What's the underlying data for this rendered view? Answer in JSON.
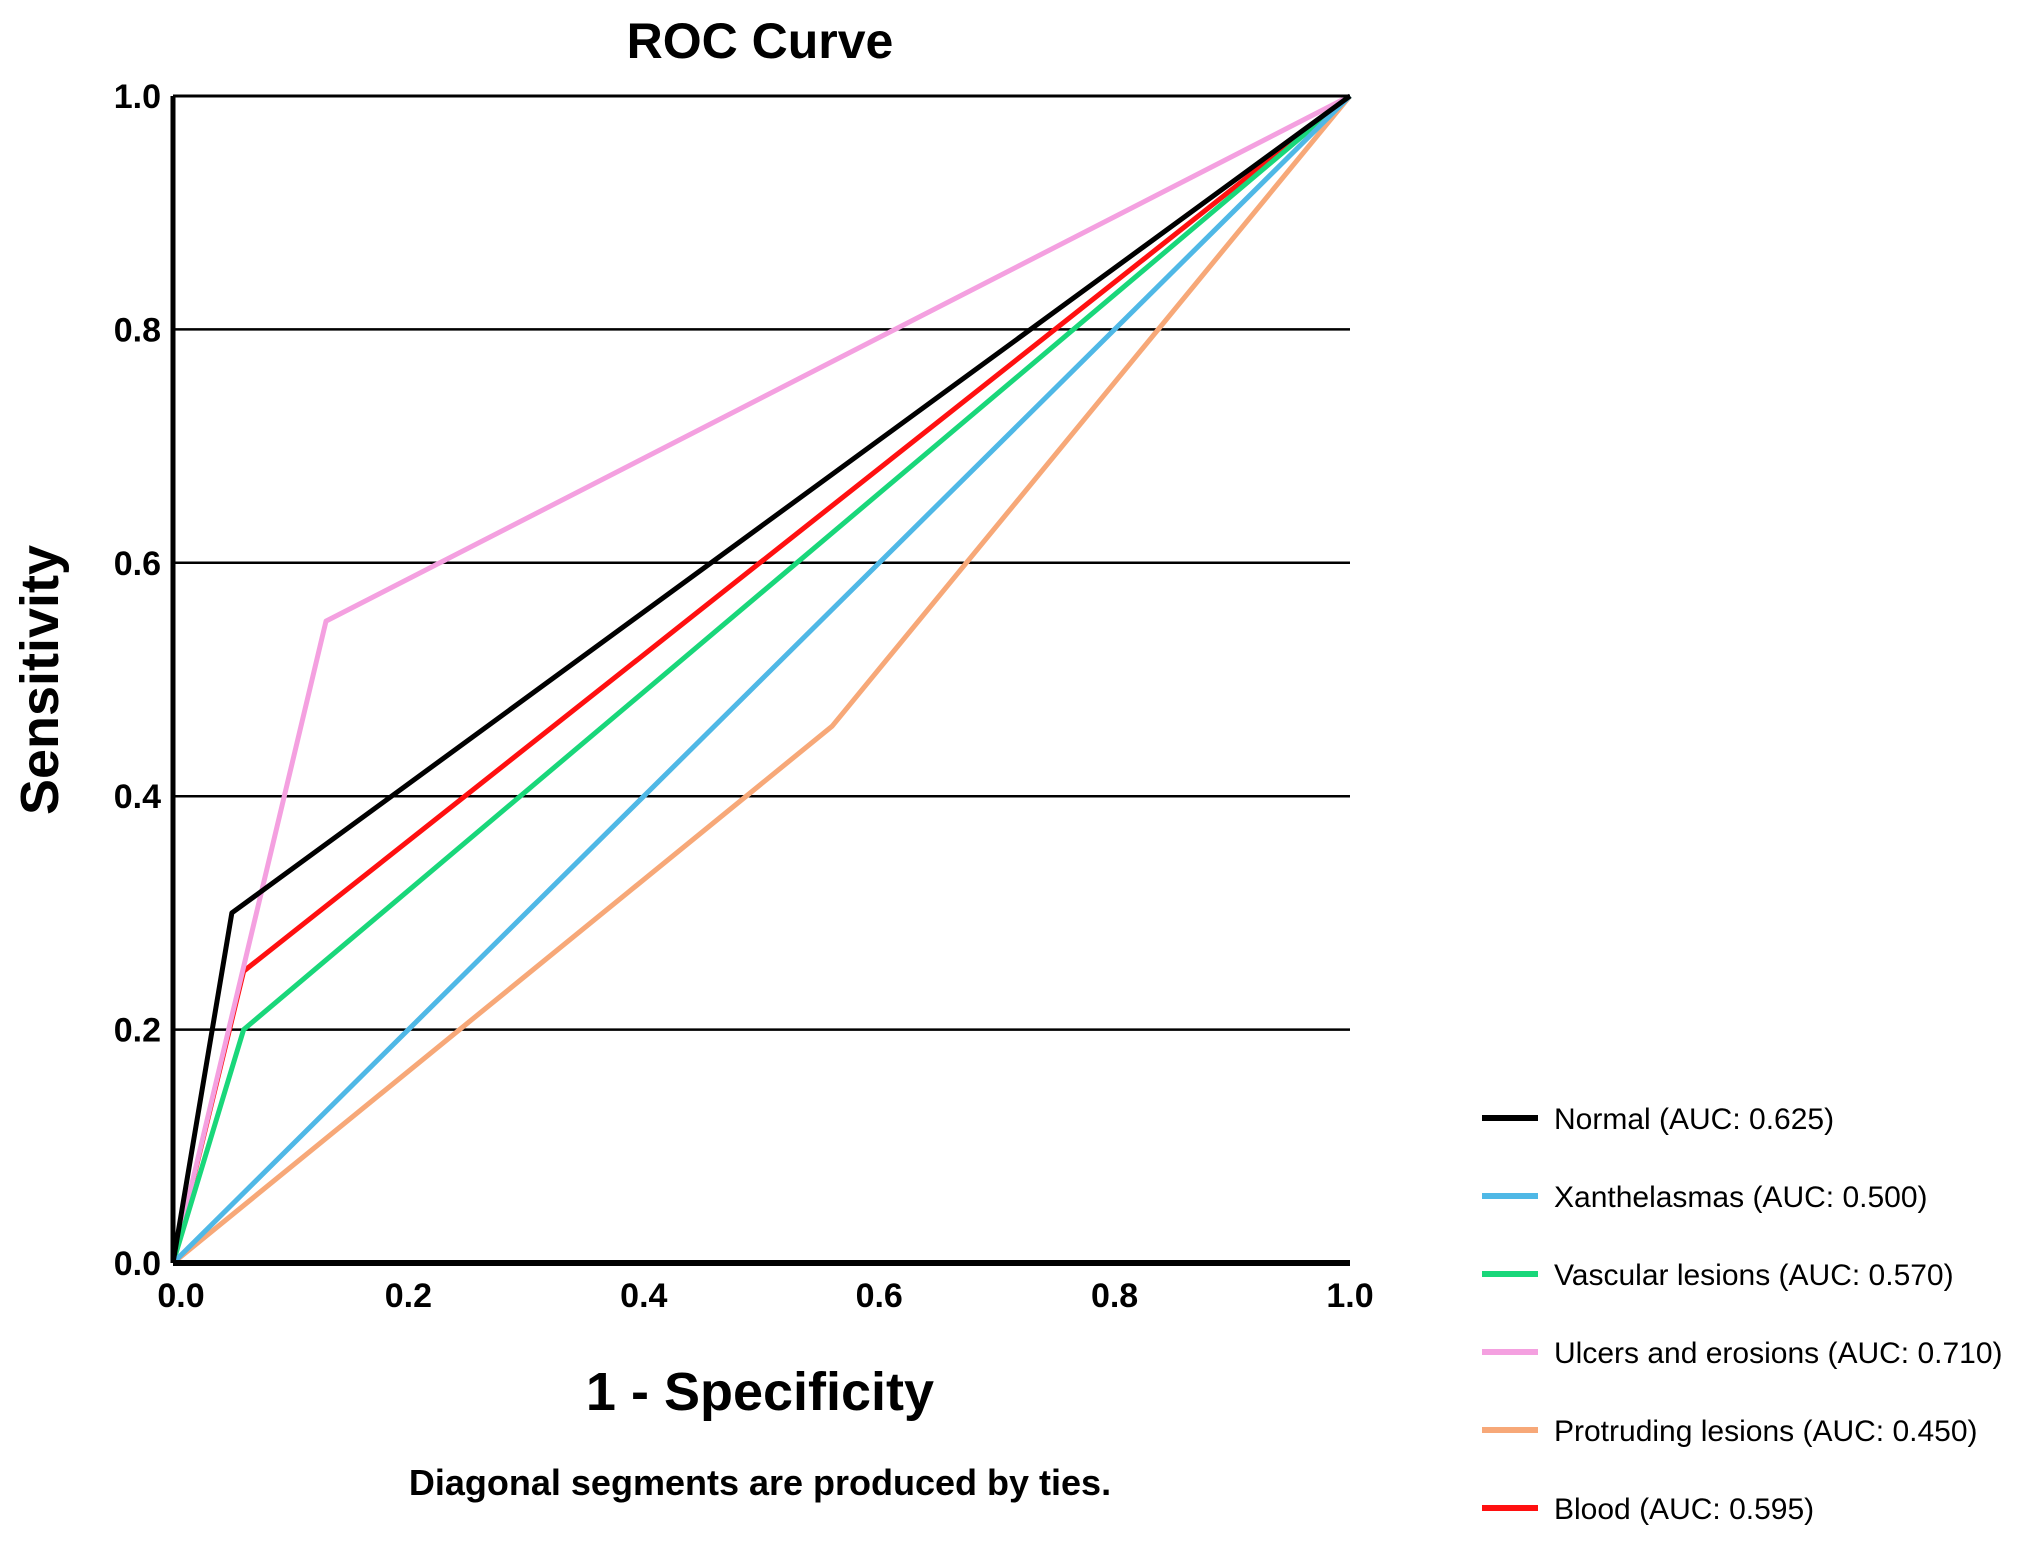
{
  "chart_data": {
    "type": "line",
    "title": "ROC Curve",
    "xlabel": "1 - Specificity",
    "ylabel": "Sensitivity",
    "note": "Diagonal segments are produced by ties.",
    "xlim": [
      0,
      1
    ],
    "ylim": [
      0,
      1
    ],
    "xticks": [
      "0.0",
      "0.2",
      "0.4",
      "0.6",
      "0.8",
      "1.0"
    ],
    "yticks": [
      "0.0",
      "0.2",
      "0.4",
      "0.6",
      "0.8",
      "1.0"
    ],
    "grid": "horizontal",
    "legend_position": "bottom-right",
    "series": [
      {
        "name": "Normal (AUC: 0.625)",
        "color": "#000000",
        "x": [
          0,
          0.05,
          1
        ],
        "y": [
          0,
          0.3,
          1
        ]
      },
      {
        "name": "Xanthelasmas (AUC: 0.500)",
        "color": "#4fb8e6",
        "x": [
          0,
          1
        ],
        "y": [
          0,
          1
        ]
      },
      {
        "name": "Vascular lesions (AUC: 0.570)",
        "color": "#19d77a",
        "x": [
          0,
          0.06,
          1
        ],
        "y": [
          0,
          0.2,
          1
        ]
      },
      {
        "name": "Ulcers and erosions (AUC: 0.710)",
        "color": "#f4a0e0",
        "x": [
          0,
          0.13,
          1
        ],
        "y": [
          0,
          0.55,
          1
        ]
      },
      {
        "name": "Protruding lesions (AUC: 0.450)",
        "color": "#f7a878",
        "x": [
          0,
          0.56,
          1
        ],
        "y": [
          0,
          0.46,
          1
        ]
      },
      {
        "name": "Blood (AUC: 0.595)",
        "color": "#ff1010",
        "x": [
          0,
          0.06,
          1
        ],
        "y": [
          0,
          0.25,
          1
        ]
      }
    ]
  }
}
